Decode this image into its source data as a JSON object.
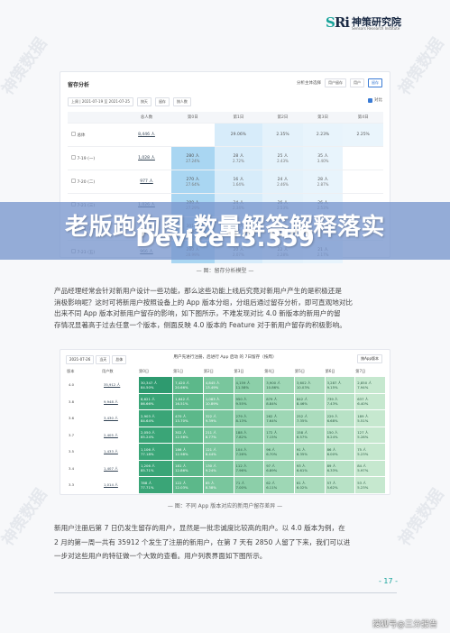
{
  "logo": {
    "mark": "S",
    "mark2": "Ri",
    "name_cn": "神策研究院",
    "name_en": "Sensors Research Institute"
  },
  "watermark": "神策数据",
  "screenshot1": {
    "title": "留存分析",
    "top_controls": [
      "分析主体选择",
      "用户留存",
      "用户",
      "留存"
    ],
    "filters": [
      "上周 | 2021-07-19 至 2021-07-25",
      "按天",
      "留存",
      "按人数"
    ],
    "checkbox_label": "对比",
    "headers": [
      "",
      "总人数",
      "第0日",
      "第1日",
      "第2日",
      "第3日",
      "第4日"
    ],
    "rows": [
      {
        "label": "总体",
        "total": "8,446 人",
        "cells": [
          [
            "",
            ""
          ],
          [
            "29.06%",
            ""
          ],
          [
            "2.35%",
            ""
          ],
          [
            "2.23%",
            ""
          ],
          [
            "2.25%",
            ""
          ]
        ]
      },
      {
        "label": "7-19 (一)",
        "total": "1,028 人",
        "cells": [
          [
            "280 人",
            "27.24%"
          ],
          [
            "28 人",
            "2.72%"
          ],
          [
            "25 人",
            "2.43%"
          ],
          [
            "35 人",
            "3.40%"
          ]
        ]
      },
      {
        "label": "7-20 (二)",
        "total": "977 人",
        "cells": [
          [
            "270 人",
            "27.64%"
          ],
          [
            "16 人",
            "1.64%"
          ],
          [
            "24 人",
            "2.46%"
          ],
          [
            "28 人",
            "2.87%"
          ]
        ]
      },
      {
        "label": "7-21 (三)",
        "total": "1,026 人",
        "cells": [
          [
            "280 人",
            "27.29%"
          ],
          [
            "24 人",
            "2.34%"
          ],
          [
            "26 人",
            "2.53%"
          ],
          [
            "26 人",
            "2.53%"
          ]
        ]
      },
      {
        "label": "7-22 (四)",
        "total": "956 人",
        "cells": [
          [
            "301 人",
            "31.49%"
          ],
          [
            "21 人",
            "2.20%"
          ],
          [
            "16 人",
            "1.67%"
          ],
          [
            "19 人",
            "1.99%"
          ]
        ]
      },
      {
        "label": "7-23 (五)",
        "total": "966 人",
        "cells": [
          [
            "280 人",
            "28.99%"
          ],
          [
            "20 人",
            "2.07%"
          ],
          [
            "22 人",
            "2.28%"
          ],
          [
            "21 人",
            "2.17%"
          ]
        ]
      }
    ],
    "caption": "— 图：留存分析模型 —"
  },
  "banner": {
    "line1": "老版跑狗图,数量解答解释落实",
    "line2": "Device13.359"
  },
  "paragraph1": [
    "产品经理经常会针对新用户设计一些功能，那么这些功能上线后究竟对新用户产生的是积极还是",
    "消极影响呢？这时可将新用户按照设备上的 App 版本分组，分组后通过留存分析，即可直观地对比",
    "出来不同 App 版本对新用户留存的影响，如下图所示，不难发现对比 4.0 新版本的新用户的留",
    "存情况显著高于过去任意一个版本，侧面反映 4.0 版本的 Feature 对于新用户留存的积极影响。"
  ],
  "screenshot2": {
    "header": "用户先进行注册，后进行 App 启动 的 7日留存（按周）",
    "tabs": [
      "2021-07-26",
      "当天",
      "总体"
    ],
    "select": "按App版本",
    "columns": [
      "版本",
      "用户数",
      "第0日",
      "第1日",
      "第2日",
      "第3日",
      "第4日",
      "第5日",
      "第6日",
      "第7日"
    ],
    "rows": [
      {
        "ver": "4.0",
        "users": "35,912 人",
        "cells": [
          "30,347 人\n84.50%",
          "7,420 人\n20.66%",
          "4,845 人\n13.49%",
          "4,159 人\n11.58%",
          "3,900 人\n10.86%",
          "3,602 人\n10.03%",
          "3,287 人\n9.15%",
          "2,850 人\n7.94%"
        ]
      },
      {
        "ver": "3.8",
        "users": "9,948 人",
        "cells": [
          "8,621 人\n86.66%",
          "1,642 人\n16.51%",
          "1,083 人\n10.89%",
          "950 人\n9.55%",
          "879 人\n8.84%",
          "842 人\n8.46%",
          "739 人\n7.43%",
          "637 人\n6.40%"
        ]
      },
      {
        "ver": "3.6",
        "users": "3,430 人",
        "cells": [
          "2,903 人\n84.64%",
          "470 人\n13.70%",
          "322 人\n9.39%",
          "279 人\n8.13%",
          "262 人\n7.64%",
          "252 人\n7.35%",
          "229 人\n6.68%",
          "189 人\n5.51%"
        ]
      },
      {
        "ver": "3.7",
        "users": "2,405 人",
        "cells": [
          "2,050 人\n85.24%",
          "302 人\n12.56%",
          "211 人\n8.77%",
          "188 人\n7.82%",
          "172 人\n7.15%",
          "158 人\n6.57%",
          "150 人\n6.24%",
          "127 人\n5.28%"
        ]
      },
      {
        "ver": "3.5",
        "users": "1,433 人",
        "cells": [
          "1,106 人\n77.18%",
          "186 人\n12.98%",
          "121 人\n8.44%",
          "104 人\n7.26%",
          "96 人\n6.70%",
          "91 人\n6.35%",
          "86 人\n6.00%",
          "75 人\n5.23%"
        ]
      },
      {
        "ver": "3.4",
        "users": "1,407 人",
        "cells": [
          "1,206 人\n85.71%",
          "181 人\n12.86%",
          "130 人\n9.24%",
          "112 人\n7.96%",
          "97 人\n6.89%",
          "93 人\n6.61%",
          "89 人\n6.33%",
          "84 人\n5.97%"
        ]
      },
      {
        "ver": "3.3",
        "users": "1,014 人",
        "cells": [
          "788 人\n77.71%",
          "122 人\n12.03%",
          "85 人\n8.38%",
          "71 人\n7.00%",
          "62 人\n6.11%",
          "61 人\n6.02%",
          "57 人\n5.62%",
          "53 人\n5.23%"
        ]
      }
    ],
    "caption": "— 图：不同 App 版本对应的新用户留存差异 —"
  },
  "paragraph2": [
    "新用户注册后第 7 日仍发生留存的用户，显然是一批忠诚度比较高的用户。以 4.0 版本为例，在",
    "2 月的第一周一共有 35912 个发生了注册的新用户，在第 7 天有 2850 人留了下来，我们可以进",
    "一步对这些用户的特征做一个大致的查看。用户列表界面如下图所示。"
  ],
  "page_number": "- 17 -",
  "source_tag": "搜狐号@三分报告",
  "colors": {
    "accent": "#17a39a",
    "heat_blue": "#a9d6f2",
    "heat_green": "#2e9a6f",
    "banner": "#7896cd"
  }
}
